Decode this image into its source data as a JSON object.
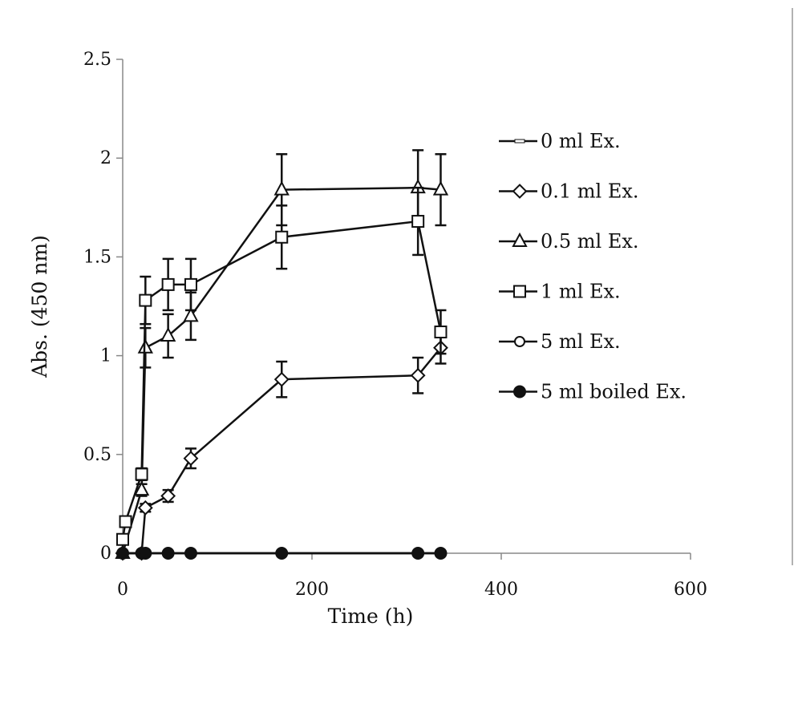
{
  "chart_data": {
    "type": "line",
    "xlabel": "Time (h)",
    "ylabel": "Abs. (450 nm)",
    "xlim": [
      0,
      600
    ],
    "ylim": [
      0,
      2.5
    ],
    "xticks": [
      "0",
      "200",
      "400",
      "600"
    ],
    "yticks": [
      "0",
      "0.5",
      "1",
      "1.5",
      "2",
      "2.5"
    ],
    "grid": false,
    "legend_position": "right",
    "series": [
      {
        "name": "0 ml Ex.",
        "marker": "dash",
        "x": [
          0,
          20,
          24,
          48,
          72,
          168,
          312,
          336
        ],
        "y": [
          0,
          0,
          0,
          0,
          0,
          0,
          0,
          0
        ],
        "err": []
      },
      {
        "name": "0.1 ml Ex.",
        "marker": "diamond-open",
        "x": [
          0,
          20,
          24,
          48,
          72,
          168,
          312,
          336
        ],
        "y": [
          0,
          0,
          0.23,
          0.29,
          0.48,
          0.88,
          0.9,
          1.04
        ],
        "err": [
          0,
          0,
          0.02,
          0.03,
          0.05,
          0.09,
          0.09,
          0.08
        ]
      },
      {
        "name": "0.5 ml Ex.",
        "marker": "triangle-open",
        "x": [
          0,
          20,
          24,
          48,
          72,
          168,
          312,
          336
        ],
        "y": [
          0,
          0.32,
          1.04,
          1.1,
          1.2,
          1.84,
          1.85,
          1.84
        ],
        "err": [
          0,
          0.03,
          0.1,
          0.11,
          0.12,
          0.18,
          0.19,
          0.18
        ]
      },
      {
        "name": "1 ml Ex.",
        "marker": "square-open",
        "x": [
          0,
          3,
          20,
          24,
          48,
          72,
          168,
          312,
          336
        ],
        "y": [
          0.07,
          0.16,
          0.4,
          1.28,
          1.36,
          1.36,
          1.6,
          1.68,
          1.12
        ],
        "err": [
          0,
          0,
          0.03,
          0.12,
          0.13,
          0.13,
          0.16,
          0.17,
          0.11
        ]
      },
      {
        "name": "5 ml Ex.",
        "marker": "circle-open",
        "x": [
          0,
          20,
          24,
          48,
          72,
          168,
          312,
          336
        ],
        "y": [
          0,
          0,
          0,
          0,
          0,
          0,
          0,
          0
        ],
        "err": []
      },
      {
        "name": "5 ml boiled Ex.",
        "marker": "circle-filled",
        "x": [
          0,
          20,
          24,
          48,
          72,
          168,
          312,
          336
        ],
        "y": [
          0,
          0,
          0,
          0,
          0,
          0,
          0,
          0
        ],
        "err": []
      }
    ]
  }
}
